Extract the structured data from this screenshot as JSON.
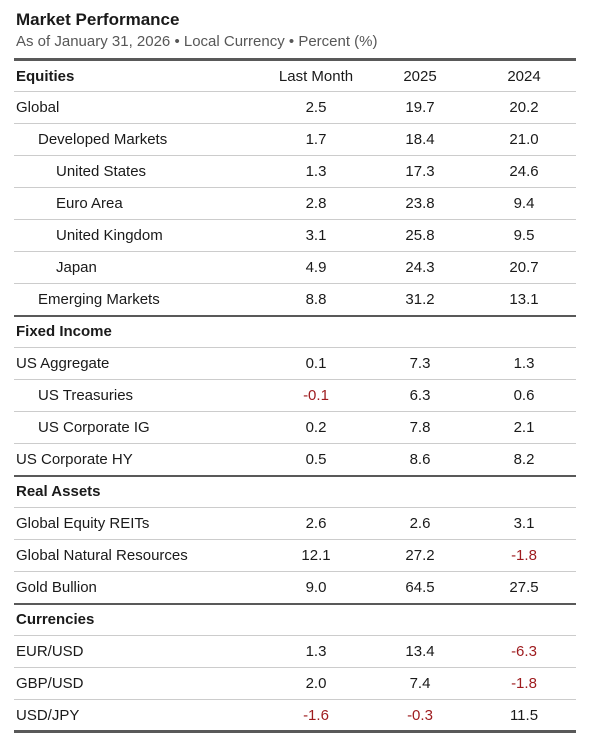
{
  "header": {
    "title": "Market Performance",
    "subtitle": "As of January 31, 2026 • Local Currency • Percent (%)"
  },
  "chart_data": {
    "type": "table",
    "title": "Market Performance",
    "subtitle": "As of January 31, 2026 • Local Currency • Percent (%)",
    "columns": [
      "Last Month",
      "2025",
      "2024"
    ],
    "sections": [
      {
        "label": "Equities",
        "rows": [
          {
            "label": "Global",
            "indent": 0,
            "values": [
              2.5,
              19.7,
              20.2
            ]
          },
          {
            "label": "Developed Markets",
            "indent": 1,
            "values": [
              1.7,
              18.4,
              21.0
            ]
          },
          {
            "label": "United States",
            "indent": 2,
            "values": [
              1.3,
              17.3,
              24.6
            ]
          },
          {
            "label": "Euro Area",
            "indent": 2,
            "values": [
              2.8,
              23.8,
              9.4
            ]
          },
          {
            "label": "United Kingdom",
            "indent": 2,
            "values": [
              3.1,
              25.8,
              9.5
            ]
          },
          {
            "label": "Japan",
            "indent": 2,
            "values": [
              4.9,
              24.3,
              20.7
            ]
          },
          {
            "label": "Emerging Markets",
            "indent": 1,
            "values": [
              8.8,
              31.2,
              13.1
            ]
          }
        ]
      },
      {
        "label": "Fixed Income",
        "rows": [
          {
            "label": "US Aggregate",
            "indent": 0,
            "values": [
              0.1,
              7.3,
              1.3
            ]
          },
          {
            "label": "US Treasuries",
            "indent": 1,
            "values": [
              -0.1,
              6.3,
              0.6
            ]
          },
          {
            "label": "US Corporate IG",
            "indent": 1,
            "values": [
              0.2,
              7.8,
              2.1
            ]
          },
          {
            "label": "US Corporate HY",
            "indent": 0,
            "values": [
              0.5,
              8.6,
              8.2
            ]
          }
        ]
      },
      {
        "label": "Real Assets",
        "rows": [
          {
            "label": "Global Equity REITs",
            "indent": 0,
            "values": [
              2.6,
              2.6,
              3.1
            ]
          },
          {
            "label": "Global Natural Resources",
            "indent": 0,
            "values": [
              12.1,
              27.2,
              -1.8
            ]
          },
          {
            "label": "Gold Bullion",
            "indent": 0,
            "values": [
              9.0,
              64.5,
              27.5
            ]
          }
        ]
      },
      {
        "label": "Currencies",
        "rows": [
          {
            "label": "EUR/USD",
            "indent": 0,
            "values": [
              1.3,
              13.4,
              -6.3
            ]
          },
          {
            "label": "GBP/USD",
            "indent": 0,
            "values": [
              2.0,
              7.4,
              -1.8
            ]
          },
          {
            "label": "USD/JPY",
            "indent": 0,
            "values": [
              -1.6,
              -0.3,
              11.5
            ]
          }
        ]
      }
    ],
    "value_decimals": 1,
    "layout": {
      "grid": "horizontal-rules-only",
      "value_alignment": "center"
    }
  },
  "colors": {
    "text": "#1a1a1a",
    "subtitle_text": "#575757",
    "negative_value": "#9e1b1e",
    "thick_rule": "#595959",
    "thin_rule": "#cccccc"
  }
}
